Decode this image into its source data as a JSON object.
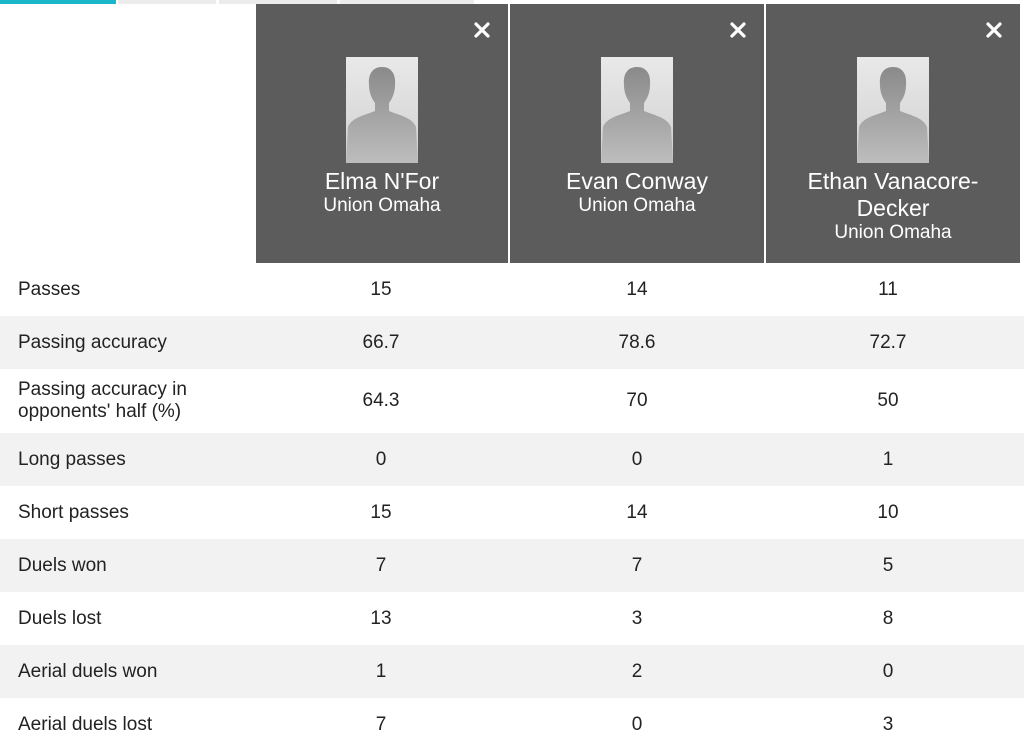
{
  "tabs": [
    "",
    "",
    "",
    ""
  ],
  "players": [
    {
      "name": "Elma N'For",
      "team": "Union Omaha",
      "avatar_icon": "person-silhouette-icon",
      "close_icon": "close-icon"
    },
    {
      "name": "Evan Conway",
      "team": "Union Omaha",
      "avatar_icon": "person-silhouette-icon",
      "close_icon": "close-icon"
    },
    {
      "name": "Ethan Vanacore-Decker",
      "team": "Union Omaha",
      "avatar_icon": "person-silhouette-icon",
      "close_icon": "close-icon"
    }
  ],
  "stats": [
    {
      "label": "Passes",
      "values": [
        "15",
        "14",
        "11"
      ]
    },
    {
      "label": "Passing accuracy",
      "values": [
        "66.7",
        "78.6",
        "72.7"
      ]
    },
    {
      "label": "Passing accuracy in opponents' half (%)",
      "values": [
        "64.3",
        "70",
        "50"
      ]
    },
    {
      "label": "Long passes",
      "values": [
        "0",
        "0",
        "1"
      ]
    },
    {
      "label": "Short passes",
      "values": [
        "15",
        "14",
        "10"
      ]
    },
    {
      "label": "Duels won",
      "values": [
        "7",
        "7",
        "5"
      ]
    },
    {
      "label": "Duels lost",
      "values": [
        "13",
        "3",
        "8"
      ]
    },
    {
      "label": "Aerial duels won",
      "values": [
        "1",
        "2",
        "0"
      ]
    },
    {
      "label": "Aerial duels lost",
      "values": [
        "7",
        "0",
        "3"
      ]
    }
  ],
  "colors": {
    "card_bg": "#5c5c5c",
    "accent_tab": "#19b7c9",
    "row_alt": "#f2f2f2"
  }
}
